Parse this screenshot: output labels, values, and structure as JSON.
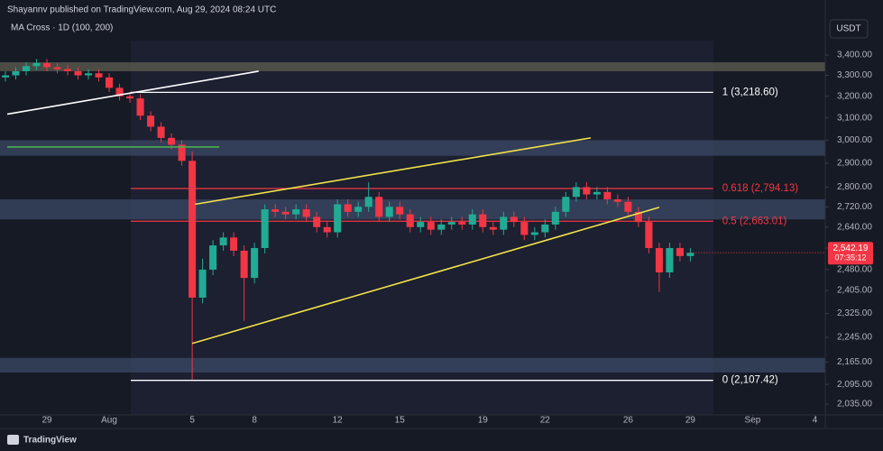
{
  "header": {
    "publisher": "Shayannv published on TradingView.com, Aug 29, 2024 08:24 UTC",
    "indicator": "MA Cross · 1D (100, 200)",
    "currency": "USDT",
    "brand": "TradingView"
  },
  "chart_data": {
    "type": "candlestick",
    "x": [
      27,
      27.5,
      28,
      28.5,
      29,
      29.5,
      30,
      30.5,
      31,
      31.5,
      32,
      32.5,
      33,
      33.5,
      34,
      34.5,
      35,
      35.5,
      36,
      36.5,
      37,
      37.5,
      38,
      38.5,
      39,
      39.5,
      40,
      40.5,
      41,
      41.5,
      42,
      42.5,
      43,
      43.5,
      44,
      44.5,
      45,
      45.5,
      46,
      46.5,
      47,
      47.5,
      48,
      48.5,
      49,
      49.5,
      50,
      50.5,
      51,
      51.5,
      52,
      52.5,
      53,
      53.5,
      54,
      54.5,
      55,
      55.5,
      56,
      56.5,
      57,
      57.5,
      58,
      58.5,
      59,
      59.5,
      60
    ],
    "open": [
      3290,
      3300,
      3320,
      3345,
      3360,
      3340,
      3330,
      3320,
      3300,
      3310,
      3290,
      3240,
      3200,
      3190,
      3110,
      3060,
      3010,
      2980,
      2910,
      2380,
      2480,
      2570,
      2600,
      2550,
      2450,
      2560,
      2710,
      2700,
      2690,
      2710,
      2680,
      2640,
      2620,
      2730,
      2700,
      2720,
      2760,
      2680,
      2720,
      2690,
      2640,
      2660,
      2630,
      2650,
      2660,
      2650,
      2690,
      2640,
      2630,
      2680,
      2660,
      2610,
      2620,
      2650,
      2700,
      2760,
      2800,
      2770,
      2780,
      2750,
      2740,
      2700,
      2660,
      2560,
      2470,
      2560,
      2530
    ],
    "high": [
      3320,
      3340,
      3365,
      3380,
      3380,
      3360,
      3350,
      3340,
      3330,
      3330,
      3310,
      3260,
      3220,
      3210,
      3130,
      3080,
      3030,
      3000,
      2950,
      2520,
      2590,
      2620,
      2620,
      2570,
      2580,
      2730,
      2730,
      2720,
      2730,
      2730,
      2700,
      2660,
      2750,
      2750,
      2740,
      2820,
      2780,
      2740,
      2740,
      2710,
      2680,
      2680,
      2670,
      2680,
      2680,
      2710,
      2710,
      2660,
      2700,
      2700,
      2680,
      2640,
      2670,
      2720,
      2780,
      2820,
      2820,
      2800,
      2800,
      2770,
      2760,
      2720,
      2680,
      2580,
      2580,
      2580,
      2560
    ],
    "low": [
      3270,
      3280,
      3300,
      3325,
      3320,
      3310,
      3300,
      3280,
      3280,
      3270,
      3220,
      3180,
      3170,
      3090,
      3040,
      2990,
      2960,
      2890,
      2110,
      2360,
      2460,
      2550,
      2530,
      2300,
      2430,
      2540,
      2680,
      2670,
      2670,
      2660,
      2620,
      2600,
      2600,
      2680,
      2680,
      2700,
      2660,
      2660,
      2670,
      2620,
      2620,
      2610,
      2610,
      2630,
      2630,
      2630,
      2620,
      2610,
      2610,
      2640,
      2590,
      2590,
      2600,
      2630,
      2680,
      2740,
      2750,
      2750,
      2730,
      2720,
      2680,
      2640,
      2540,
      2400,
      2450,
      2510,
      2510
    ],
    "close": [
      3300,
      3320,
      3345,
      3360,
      3340,
      3330,
      3320,
      3300,
      3310,
      3290,
      3240,
      3200,
      3190,
      3110,
      3060,
      3010,
      2980,
      2910,
      2380,
      2480,
      2570,
      2600,
      2550,
      2450,
      2560,
      2710,
      2700,
      2690,
      2710,
      2680,
      2640,
      2620,
      2730,
      2700,
      2720,
      2760,
      2680,
      2720,
      2690,
      2640,
      2660,
      2630,
      2650,
      2660,
      2650,
      2690,
      2640,
      2630,
      2680,
      2660,
      2610,
      2620,
      2650,
      2700,
      2760,
      2800,
      2770,
      2780,
      2750,
      2740,
      2700,
      2660,
      2560,
      2470,
      2560,
      2530,
      2542.19
    ],
    "up_color": "#22ab94",
    "down_color": "#f23645",
    "log_scale": true,
    "ylim": [
      2003,
      3473
    ],
    "yticks": [
      {
        "value": 3400,
        "label": "3,400.00"
      },
      {
        "value": 3300,
        "label": "3,300.00"
      },
      {
        "value": 3200,
        "label": "3,200.00"
      },
      {
        "value": 3100,
        "label": "3,100.00"
      },
      {
        "value": 3000,
        "label": "3,000.00"
      },
      {
        "value": 2900,
        "label": "2,900.00"
      },
      {
        "value": 2800,
        "label": "2,800.00"
      },
      {
        "value": 2720,
        "label": "2,720.00"
      },
      {
        "value": 2640,
        "label": "2,640.00"
      },
      {
        "value": 2560,
        "label": "2,560.00"
      },
      {
        "value": 2480,
        "label": "2,480.00"
      },
      {
        "value": 2405,
        "label": "2,405.00"
      },
      {
        "value": 2325,
        "label": "2,325.00"
      },
      {
        "value": 2245,
        "label": "2,245.00"
      },
      {
        "value": 2165,
        "label": "2,165.00"
      },
      {
        "value": 2095,
        "label": "2,095.00"
      },
      {
        "value": 2035,
        "label": "2,035.00"
      }
    ],
    "xlim": [
      26.74,
      66.5
    ],
    "xticks": [
      29,
      {
        "value": 32,
        "label": "Aug"
      },
      {
        "value": 36,
        "label": "5"
      },
      {
        "value": 39,
        "label": "8"
      },
      {
        "value": 43,
        "label": "12"
      },
      {
        "value": 46,
        "label": "15"
      },
      {
        "value": 50,
        "label": "19"
      },
      {
        "value": 53,
        "label": "22"
      },
      {
        "value": 57,
        "label": "26"
      },
      {
        "value": 60,
        "label": "29"
      },
      {
        "value": 63,
        "label": "Sep"
      },
      {
        "value": 66,
        "label": "4"
      }
    ],
    "last_price": {
      "value": 2542.19,
      "label": "2,542.19",
      "countdown": "07:35:12"
    },
    "fib_levels": [
      {
        "value": 3218.6,
        "label": "1 (3,218.60)",
        "color": "#ffffff"
      },
      {
        "value": 2794.13,
        "label": "0.618 (2,794.13)",
        "color": "#f23645"
      },
      {
        "value": 2663.01,
        "label": "0.5 (2,663.01)",
        "color": "#f23645"
      },
      {
        "value": 2107.42,
        "label": "0 (2,107.42)",
        "color": "#ffffff"
      }
    ],
    "fib_x": [
      33.04,
      61.1
    ],
    "zones": [
      {
        "from": 3320,
        "to": 3364,
        "color": "#5d5e50"
      },
      {
        "from": 2932,
        "to": 3000,
        "color": "#3b4a66"
      },
      {
        "from": 2670,
        "to": 2750,
        "color": "#3b4a66"
      },
      {
        "from": 2132,
        "to": 2178,
        "color": "#3b4a66"
      }
    ],
    "lines": [
      {
        "x": [
          27.09,
          39.2
        ],
        "y": [
          3117,
          3320
        ],
        "color": "#ffffff"
      },
      {
        "x": [
          27.09,
          37.3
        ],
        "y": [
          2970,
          2970
        ],
        "color": "#4caf50"
      },
      {
        "x": [
          36.13,
          55.2
        ],
        "y": [
          2730,
          3010
        ],
        "color": "#f2e14b"
      },
      {
        "x": [
          36.0,
          58.5
        ],
        "y": [
          2225,
          2718
        ],
        "color": "#f2e14b"
      }
    ]
  }
}
